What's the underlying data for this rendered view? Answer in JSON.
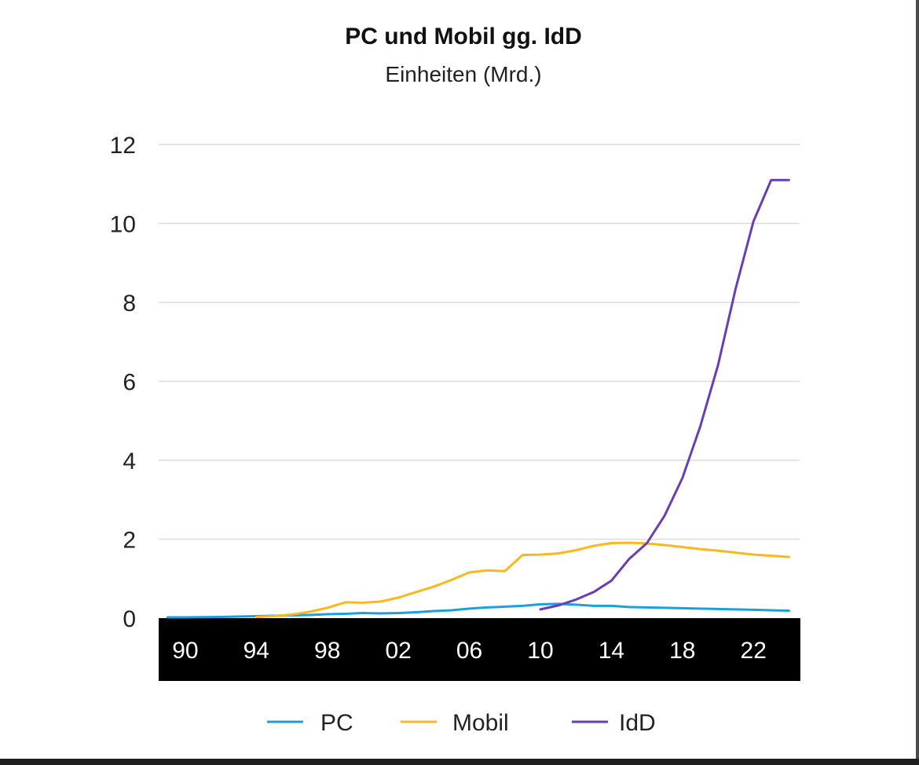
{
  "chart_data": {
    "type": "line",
    "title": "PC und Mobil gg. IdD",
    "subtitle": "Einheiten (Mrd.)",
    "xlabel": "",
    "ylabel": "",
    "xlim": [
      1988.5,
      2024.6
    ],
    "ylim": [
      0,
      12
    ],
    "yticks": [
      0,
      2,
      4,
      6,
      8,
      10,
      12
    ],
    "xticks": [
      {
        "value": 1990,
        "label": "90"
      },
      {
        "value": 1994,
        "label": "94"
      },
      {
        "value": 1998,
        "label": "98"
      },
      {
        "value": 2002,
        "label": "02"
      },
      {
        "value": 2006,
        "label": "06"
      },
      {
        "value": 2010,
        "label": "10"
      },
      {
        "value": 2014,
        "label": "14"
      },
      {
        "value": 2018,
        "label": "18"
      },
      {
        "value": 2022,
        "label": "22"
      }
    ],
    "grid": true,
    "legend_position": "bottom-center",
    "series": [
      {
        "name": "PC",
        "color": "#1aa0dc",
        "x": [
          1989,
          1990,
          1991,
          1992,
          1993,
          1994,
          1995,
          1996,
          1997,
          1998,
          1999,
          2000,
          2001,
          2002,
          2003,
          2004,
          2005,
          2006,
          2007,
          2008,
          2009,
          2010,
          2011,
          2012,
          2013,
          2014,
          2015,
          2016,
          2017,
          2018,
          2019,
          2020,
          2021,
          2022,
          2023,
          2024
        ],
        "y": [
          0.02,
          0.02,
          0.025,
          0.03,
          0.04,
          0.05,
          0.06,
          0.07,
          0.08,
          0.1,
          0.11,
          0.13,
          0.12,
          0.13,
          0.15,
          0.18,
          0.2,
          0.24,
          0.27,
          0.29,
          0.31,
          0.35,
          0.36,
          0.34,
          0.31,
          0.31,
          0.28,
          0.27,
          0.26,
          0.25,
          0.24,
          0.23,
          0.22,
          0.21,
          0.2,
          0.19
        ]
      },
      {
        "name": "Mobil",
        "color": "#f9b81e",
        "x": [
          1994,
          1995,
          1996,
          1997,
          1998,
          1999,
          2000,
          2001,
          2002,
          2003,
          2004,
          2005,
          2006,
          2007,
          2008,
          2009,
          2010,
          2011,
          2012,
          2013,
          2014,
          2015,
          2016,
          2017,
          2018,
          2019,
          2020,
          2021,
          2022,
          2023,
          2024
        ],
        "y": [
          0.03,
          0.05,
          0.09,
          0.16,
          0.26,
          0.4,
          0.39,
          0.42,
          0.52,
          0.66,
          0.8,
          0.97,
          1.16,
          1.21,
          1.19,
          1.6,
          1.61,
          1.64,
          1.72,
          1.83,
          1.9,
          1.91,
          1.89,
          1.85,
          1.8,
          1.75,
          1.71,
          1.66,
          1.61,
          1.58,
          1.55
        ]
      },
      {
        "name": "IdD",
        "color": "#6a3db5",
        "x": [
          2010,
          2011,
          2012,
          2013,
          2014,
          2015,
          2016,
          2017,
          2018,
          2019,
          2020,
          2021,
          2022,
          2023,
          2024
        ],
        "y": [
          0.22,
          0.32,
          0.47,
          0.66,
          0.95,
          1.5,
          1.9,
          2.6,
          3.55,
          4.85,
          6.4,
          8.35,
          10.05,
          11.1,
          11.1
        ]
      }
    ]
  }
}
